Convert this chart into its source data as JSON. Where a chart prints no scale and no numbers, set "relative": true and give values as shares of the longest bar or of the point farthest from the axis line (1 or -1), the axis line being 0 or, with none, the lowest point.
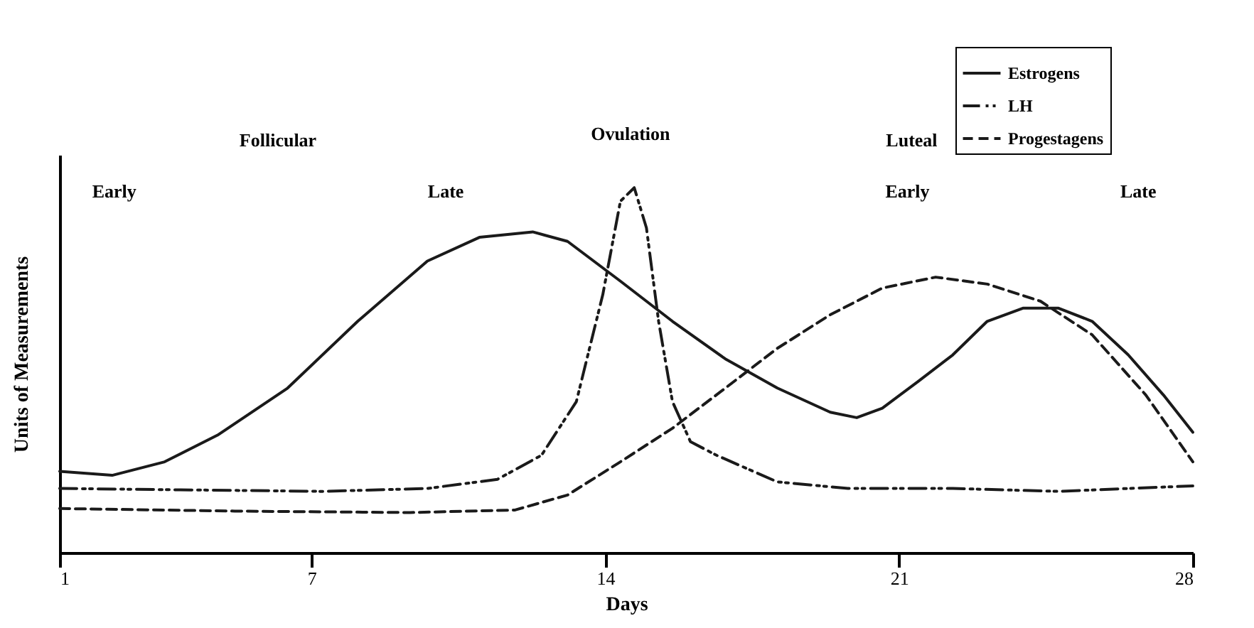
{
  "chart_data": {
    "type": "line",
    "relative": true,
    "xlabel": "Days",
    "ylabel": "Units of Measurements",
    "xlim": [
      1,
      28
    ],
    "xticks": [
      1,
      7,
      14,
      21,
      28
    ],
    "grid": false,
    "legend": "top right",
    "marker": "none",
    "annotations": [
      "Follicular",
      "Ovulation",
      "Luteal",
      "Early",
      "Late",
      "Early",
      "Late"
    ],
    "series": [
      {
        "name": "Estrogens",
        "color": "#1a1a1a",
        "line_style": "solid",
        "x": [
          1,
          2.25,
          3.5,
          4.76,
          6.43,
          8.1,
          9.76,
          11.0,
          12.27,
          13.1,
          14.36,
          15.6,
          16.86,
          18.1,
          19.36,
          19.99,
          20.6,
          21.45,
          22.28,
          23.1,
          23.95,
          24.8,
          25.6,
          26.46,
          27.3,
          28
        ],
        "values": [
          0.223,
          0.212,
          0.249,
          0.322,
          0.451,
          0.634,
          0.799,
          0.864,
          0.879,
          0.853,
          0.744,
          0.634,
          0.531,
          0.451,
          0.385,
          0.37,
          0.396,
          0.469,
          0.542,
          0.634,
          0.67,
          0.67,
          0.634,
          0.542,
          0.432,
          0.33
        ]
      },
      {
        "name": "LH",
        "color": "#1a1a1a",
        "line_style": "dashdot",
        "x": [
          1,
          7.26,
          9.76,
          11.43,
          12.48,
          13.31,
          13.94,
          14.36,
          14.69,
          14.98,
          15.27,
          15.6,
          16.03,
          16.65,
          18.1,
          19.78,
          22.28,
          24.8,
          26.46,
          28
        ],
        "values": [
          0.176,
          0.168,
          0.176,
          0.201,
          0.267,
          0.414,
          0.707,
          0.963,
          1.0,
          0.89,
          0.634,
          0.414,
          0.304,
          0.267,
          0.194,
          0.176,
          0.176,
          0.168,
          0.176,
          0.183
        ]
      },
      {
        "name": "Progestagens",
        "color": "#1a1a1a",
        "line_style": "dashed",
        "x": [
          1,
          5.17,
          9.35,
          11.85,
          13.1,
          14.36,
          15.6,
          16.86,
          18.1,
          19.36,
          20.6,
          21.87,
          23.1,
          24.37,
          25.6,
          26.88,
          28
        ],
        "values": [
          0.121,
          0.114,
          0.11,
          0.117,
          0.158,
          0.249,
          0.341,
          0.451,
          0.56,
          0.652,
          0.725,
          0.755,
          0.736,
          0.689,
          0.597,
          0.432,
          0.249
        ]
      }
    ]
  }
}
